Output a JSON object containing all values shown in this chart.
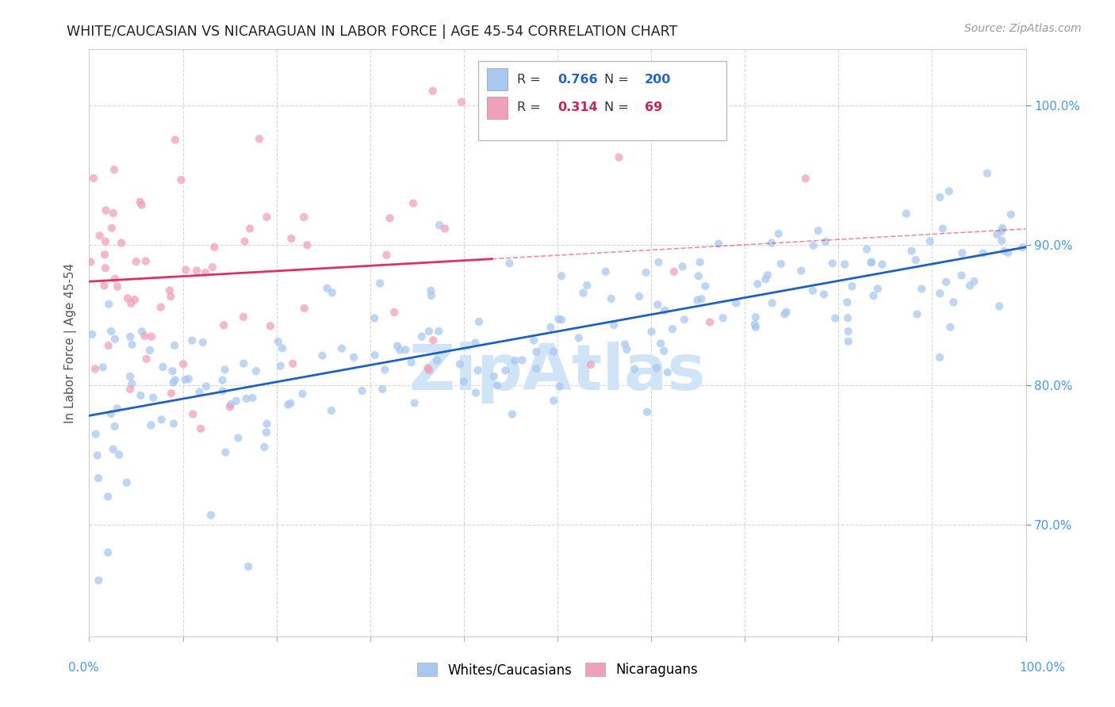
{
  "title": "WHITE/CAUCASIAN VS NICARAGUAN IN LABOR FORCE | AGE 45-54 CORRELATION CHART",
  "source": "Source: ZipAtlas.com",
  "ylabel": "In Labor Force | Age 45-54",
  "legend_blue_r": "0.766",
  "legend_blue_n": "200",
  "legend_pink_r": "0.314",
  "legend_pink_n": "69",
  "blue_color": "#a8c8f0",
  "pink_color": "#f0a0b8",
  "blue_line_color": "#2060c0",
  "pink_line_color": "#e03060",
  "watermark_color": "#d0e4f8",
  "grid_color": "#d8d8d8",
  "ytick_vals": [
    0.7,
    0.8,
    0.9,
    1.0
  ],
  "ytick_labels": [
    "70.0%",
    "80.0%",
    "90.0%",
    "100.0%"
  ],
  "ylim": [
    0.62,
    1.04
  ],
  "xlim": [
    0.0,
    1.0
  ]
}
